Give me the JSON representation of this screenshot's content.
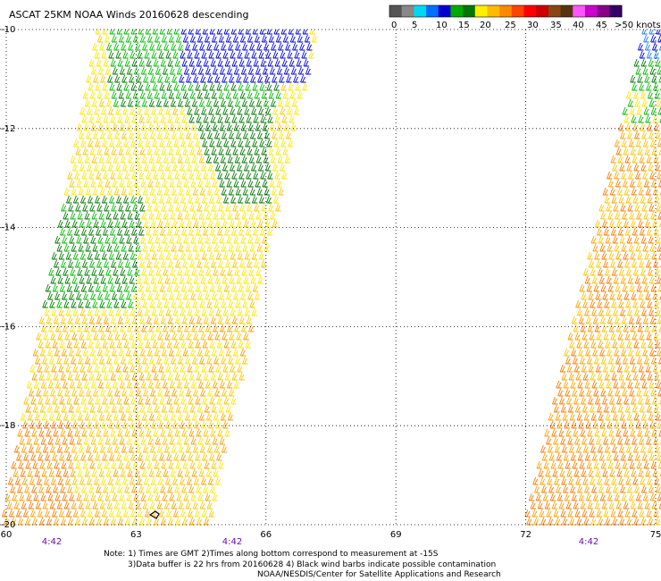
{
  "title": "ASCAT 25KM NOAA Winds 20160628 descending",
  "legend": {
    "labels": [
      "0",
      "5",
      "10",
      "15",
      "20",
      "25",
      "30",
      "35",
      "40",
      "45",
      ">50 knots"
    ],
    "colors": [
      "#555555",
      "#888888",
      "#00d8f0",
      "#0070ff",
      "#0000cc",
      "#00aa00",
      "#007700",
      "#ffee00",
      "#ffbb00",
      "#ff8800",
      "#ff4400",
      "#ff0000",
      "#cc0000",
      "#8b4513",
      "#553311",
      "#ff55ff",
      "#cc00cc",
      "#880088",
      "#330066"
    ]
  },
  "axes": {
    "lat_labels": [
      "-10",
      "-12",
      "-14",
      "-16",
      "-18",
      "-20"
    ],
    "lon_labels": [
      "60",
      "63",
      "66",
      "69",
      "72",
      "75"
    ],
    "lat_range": [
      -20,
      -10
    ],
    "lon_range": [
      60,
      75
    ]
  },
  "pass_times": [
    "4:42",
    "4:42",
    "4:42"
  ],
  "notes": {
    "line1": "Note: 1) Times are GMT 2)Times along bottom correspond to measurement at -15S",
    "line2": "3)Data buffer is 22 hrs from 20160628 4) Black wind barbs indicate possible contamination",
    "line3": "NOAA/NESDIS/Center for Satellite Applications and Research"
  }
}
